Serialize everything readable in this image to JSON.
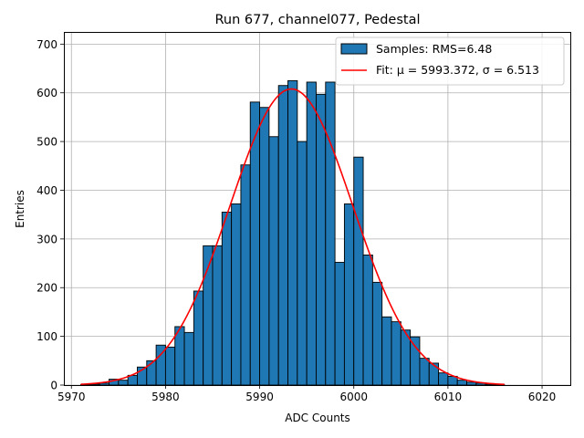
{
  "chart_data": {
    "type": "bar",
    "title": "Run 677, channel077, Pedestal",
    "xlabel": "ADC Counts",
    "ylabel": "Entries",
    "xlim": [
      5969.2,
      6023.0
    ],
    "ylim": [
      0,
      725
    ],
    "xticks": [
      5970,
      5980,
      5990,
      6000,
      6010,
      6020
    ],
    "yticks": [
      0,
      100,
      200,
      300,
      400,
      500,
      600,
      700
    ],
    "grid": true,
    "legend_position": "top-right",
    "series": [
      {
        "name": "Samples: RMS=6.48",
        "kind": "histogram",
        "color": "#1f77b4",
        "edgecolor": "#000000",
        "bin_width": 1,
        "bin_starts": [
          5971,
          5972,
          5973,
          5974,
          5975,
          5976,
          5977,
          5978,
          5979,
          5980,
          5981,
          5982,
          5983,
          5984,
          5985,
          5986,
          5987,
          5988,
          5989,
          5990,
          5991,
          5992,
          5993,
          5994,
          5995,
          5996,
          5997,
          5998,
          5999,
          6000,
          6001,
          6002,
          6003,
          6004,
          6005,
          6006,
          6007,
          6008,
          6009,
          6010,
          6011,
          6012,
          6013,
          6014,
          6015
        ],
        "values": [
          1,
          2,
          4,
          12,
          10,
          20,
          37,
          50,
          82,
          78,
          120,
          108,
          193,
          286,
          286,
          355,
          372,
          452,
          581,
          570,
          510,
          615,
          625,
          500,
          622,
          597,
          622,
          252,
          372,
          468,
          267,
          211,
          140,
          130,
          113,
          99,
          55,
          45,
          25,
          18,
          10,
          6,
          4,
          2,
          1
        ]
      },
      {
        "name": "Fit: μ = 5993.372, σ = 6.513",
        "kind": "gaussian-fit",
        "color": "#ff0000",
        "mu": 5993.372,
        "sigma": 6.513,
        "amplitude": 608,
        "x_range": [
          5971,
          6016
        ]
      }
    ]
  }
}
